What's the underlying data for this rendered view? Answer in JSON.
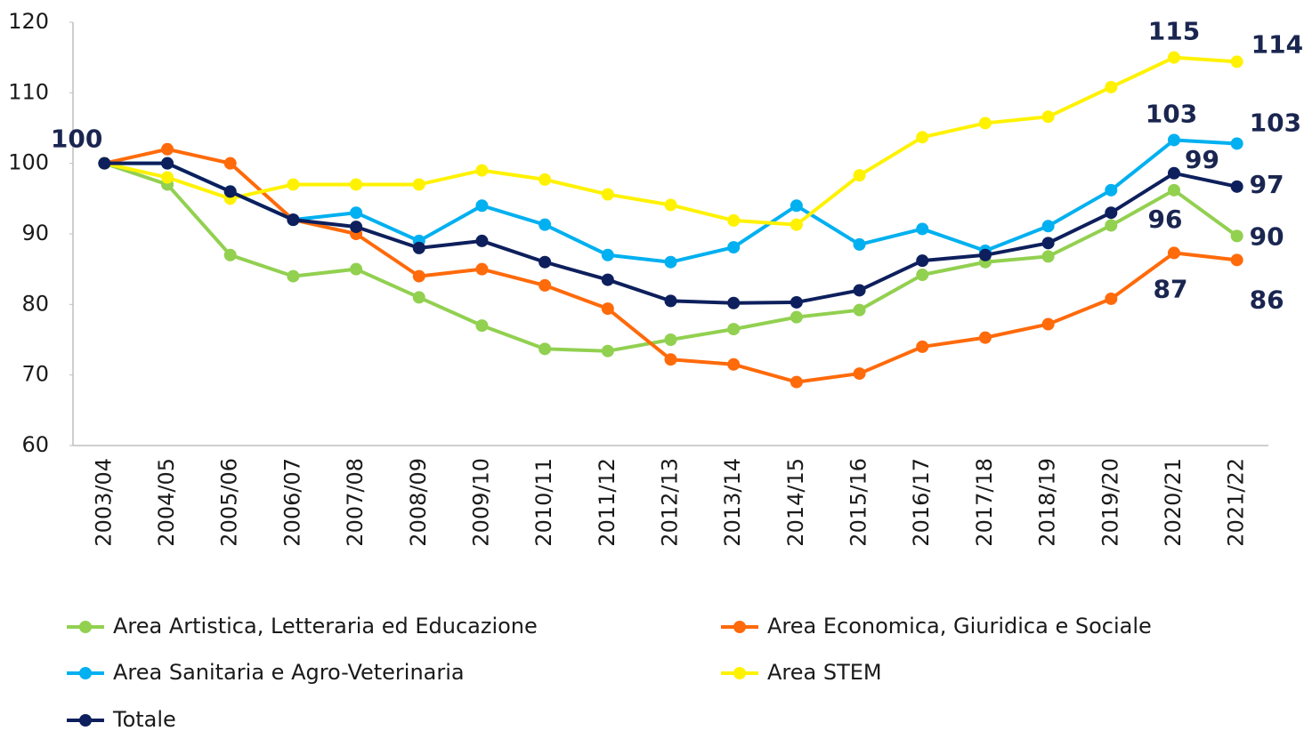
{
  "chart_data": {
    "type": "line",
    "categories": [
      "2003/04",
      "2004/05",
      "2005/06",
      "2006/07",
      "2007/08",
      "2008/09",
      "2009/10",
      "2010/11",
      "2011/12",
      "2012/13",
      "2013/14",
      "2014/15",
      "2015/16",
      "2016/17",
      "2017/18",
      "2018/19",
      "2019/20",
      "2020/21",
      "2021/22"
    ],
    "ylim": [
      60,
      120
    ],
    "yticks": [
      60,
      70,
      80,
      90,
      100,
      110,
      120
    ],
    "series": [
      {
        "name": "Area Artistica, Letteraria ed Educazione",
        "color": "#92d050",
        "values": [
          100,
          97,
          87,
          84,
          85,
          81,
          77,
          73.7,
          73.4,
          75,
          76.5,
          78.2,
          79.2,
          84.2,
          86,
          86.8,
          91.2,
          96.2,
          89.7
        ],
        "value_labels": [
          null,
          null,
          null,
          null,
          null,
          null,
          null,
          null,
          null,
          null,
          null,
          null,
          null,
          null,
          null,
          null,
          null,
          "96",
          "90"
        ]
      },
      {
        "name": "Area Economica, Giuridica e Sociale",
        "color": "#ff6a0a",
        "values": [
          100,
          102,
          100,
          92,
          90,
          84,
          85,
          82.7,
          79.4,
          72.2,
          71.5,
          69,
          70.2,
          74,
          75.3,
          77.2,
          80.8,
          87.3,
          86.3
        ],
        "value_labels": [
          null,
          null,
          null,
          null,
          null,
          null,
          null,
          null,
          null,
          null,
          null,
          null,
          null,
          null,
          null,
          null,
          null,
          "87",
          "86"
        ]
      },
      {
        "name": "Area Sanitaria e Agro-Veterinaria",
        "color": "#00b0f0",
        "values": [
          100,
          100,
          96,
          92,
          93,
          89,
          94,
          91.3,
          87,
          86,
          88.1,
          94,
          88.5,
          90.7,
          87.6,
          91.1,
          96.2,
          103.3,
          102.8
        ],
        "value_labels": [
          null,
          null,
          null,
          null,
          null,
          null,
          null,
          null,
          null,
          null,
          null,
          null,
          null,
          null,
          null,
          null,
          null,
          "103",
          "103"
        ]
      },
      {
        "name": "Area STEM",
        "color": "#fff200",
        "values": [
          100,
          98,
          95,
          97,
          97,
          97,
          99,
          97.7,
          95.6,
          94.1,
          91.9,
          91.3,
          98.3,
          103.7,
          105.7,
          106.6,
          110.8,
          115,
          114.4
        ],
        "value_labels": [
          null,
          null,
          null,
          null,
          null,
          null,
          null,
          null,
          null,
          null,
          null,
          null,
          null,
          null,
          null,
          null,
          null,
          "115",
          "114"
        ]
      },
      {
        "name": "Totale",
        "color": "#0d1f5c",
        "values": [
          100,
          100,
          96,
          92,
          91,
          88,
          89,
          86,
          83.5,
          80.5,
          80.2,
          80.3,
          82,
          86.2,
          87,
          88.7,
          93,
          98.6,
          96.7
        ],
        "value_labels": [
          "100",
          null,
          null,
          null,
          null,
          null,
          null,
          null,
          null,
          null,
          null,
          null,
          null,
          null,
          null,
          null,
          null,
          "99",
          "97"
        ]
      }
    ]
  }
}
